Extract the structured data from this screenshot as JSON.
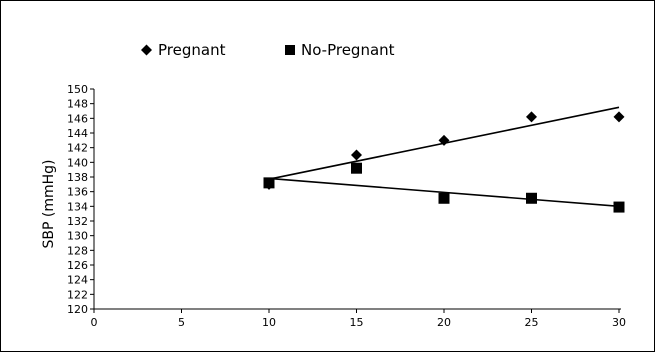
{
  "chart_data": {
    "type": "scatter",
    "title": "",
    "xlabel": "",
    "ylabel": "SBP (mmHg)",
    "xlim": [
      0,
      30
    ],
    "ylim": [
      120,
      150
    ],
    "xticks": [
      0,
      5,
      10,
      15,
      20,
      25,
      30
    ],
    "yticks": [
      120,
      122,
      124,
      126,
      128,
      130,
      132,
      134,
      136,
      138,
      140,
      142,
      144,
      146,
      148,
      150
    ],
    "grid": false,
    "legend": "top",
    "series": [
      {
        "name": "Pregnant",
        "marker": "diamond",
        "color": "#000000",
        "x": [
          10,
          15,
          20,
          25,
          30
        ],
        "y": [
          137,
          141,
          143,
          146.2,
          146.2
        ],
        "trendline": {
          "from": [
            10,
            137.7
          ],
          "to": [
            30,
            147.5
          ]
        }
      },
      {
        "name": "No-Pregnant",
        "marker": "square",
        "color": "#000000",
        "x": [
          10,
          15,
          20,
          25,
          30
        ],
        "y": [
          137.2,
          139.2,
          135.1,
          135.1,
          133.9
        ],
        "trendline": {
          "from": [
            10,
            137.8
          ],
          "to": [
            30,
            134
          ]
        }
      }
    ]
  }
}
